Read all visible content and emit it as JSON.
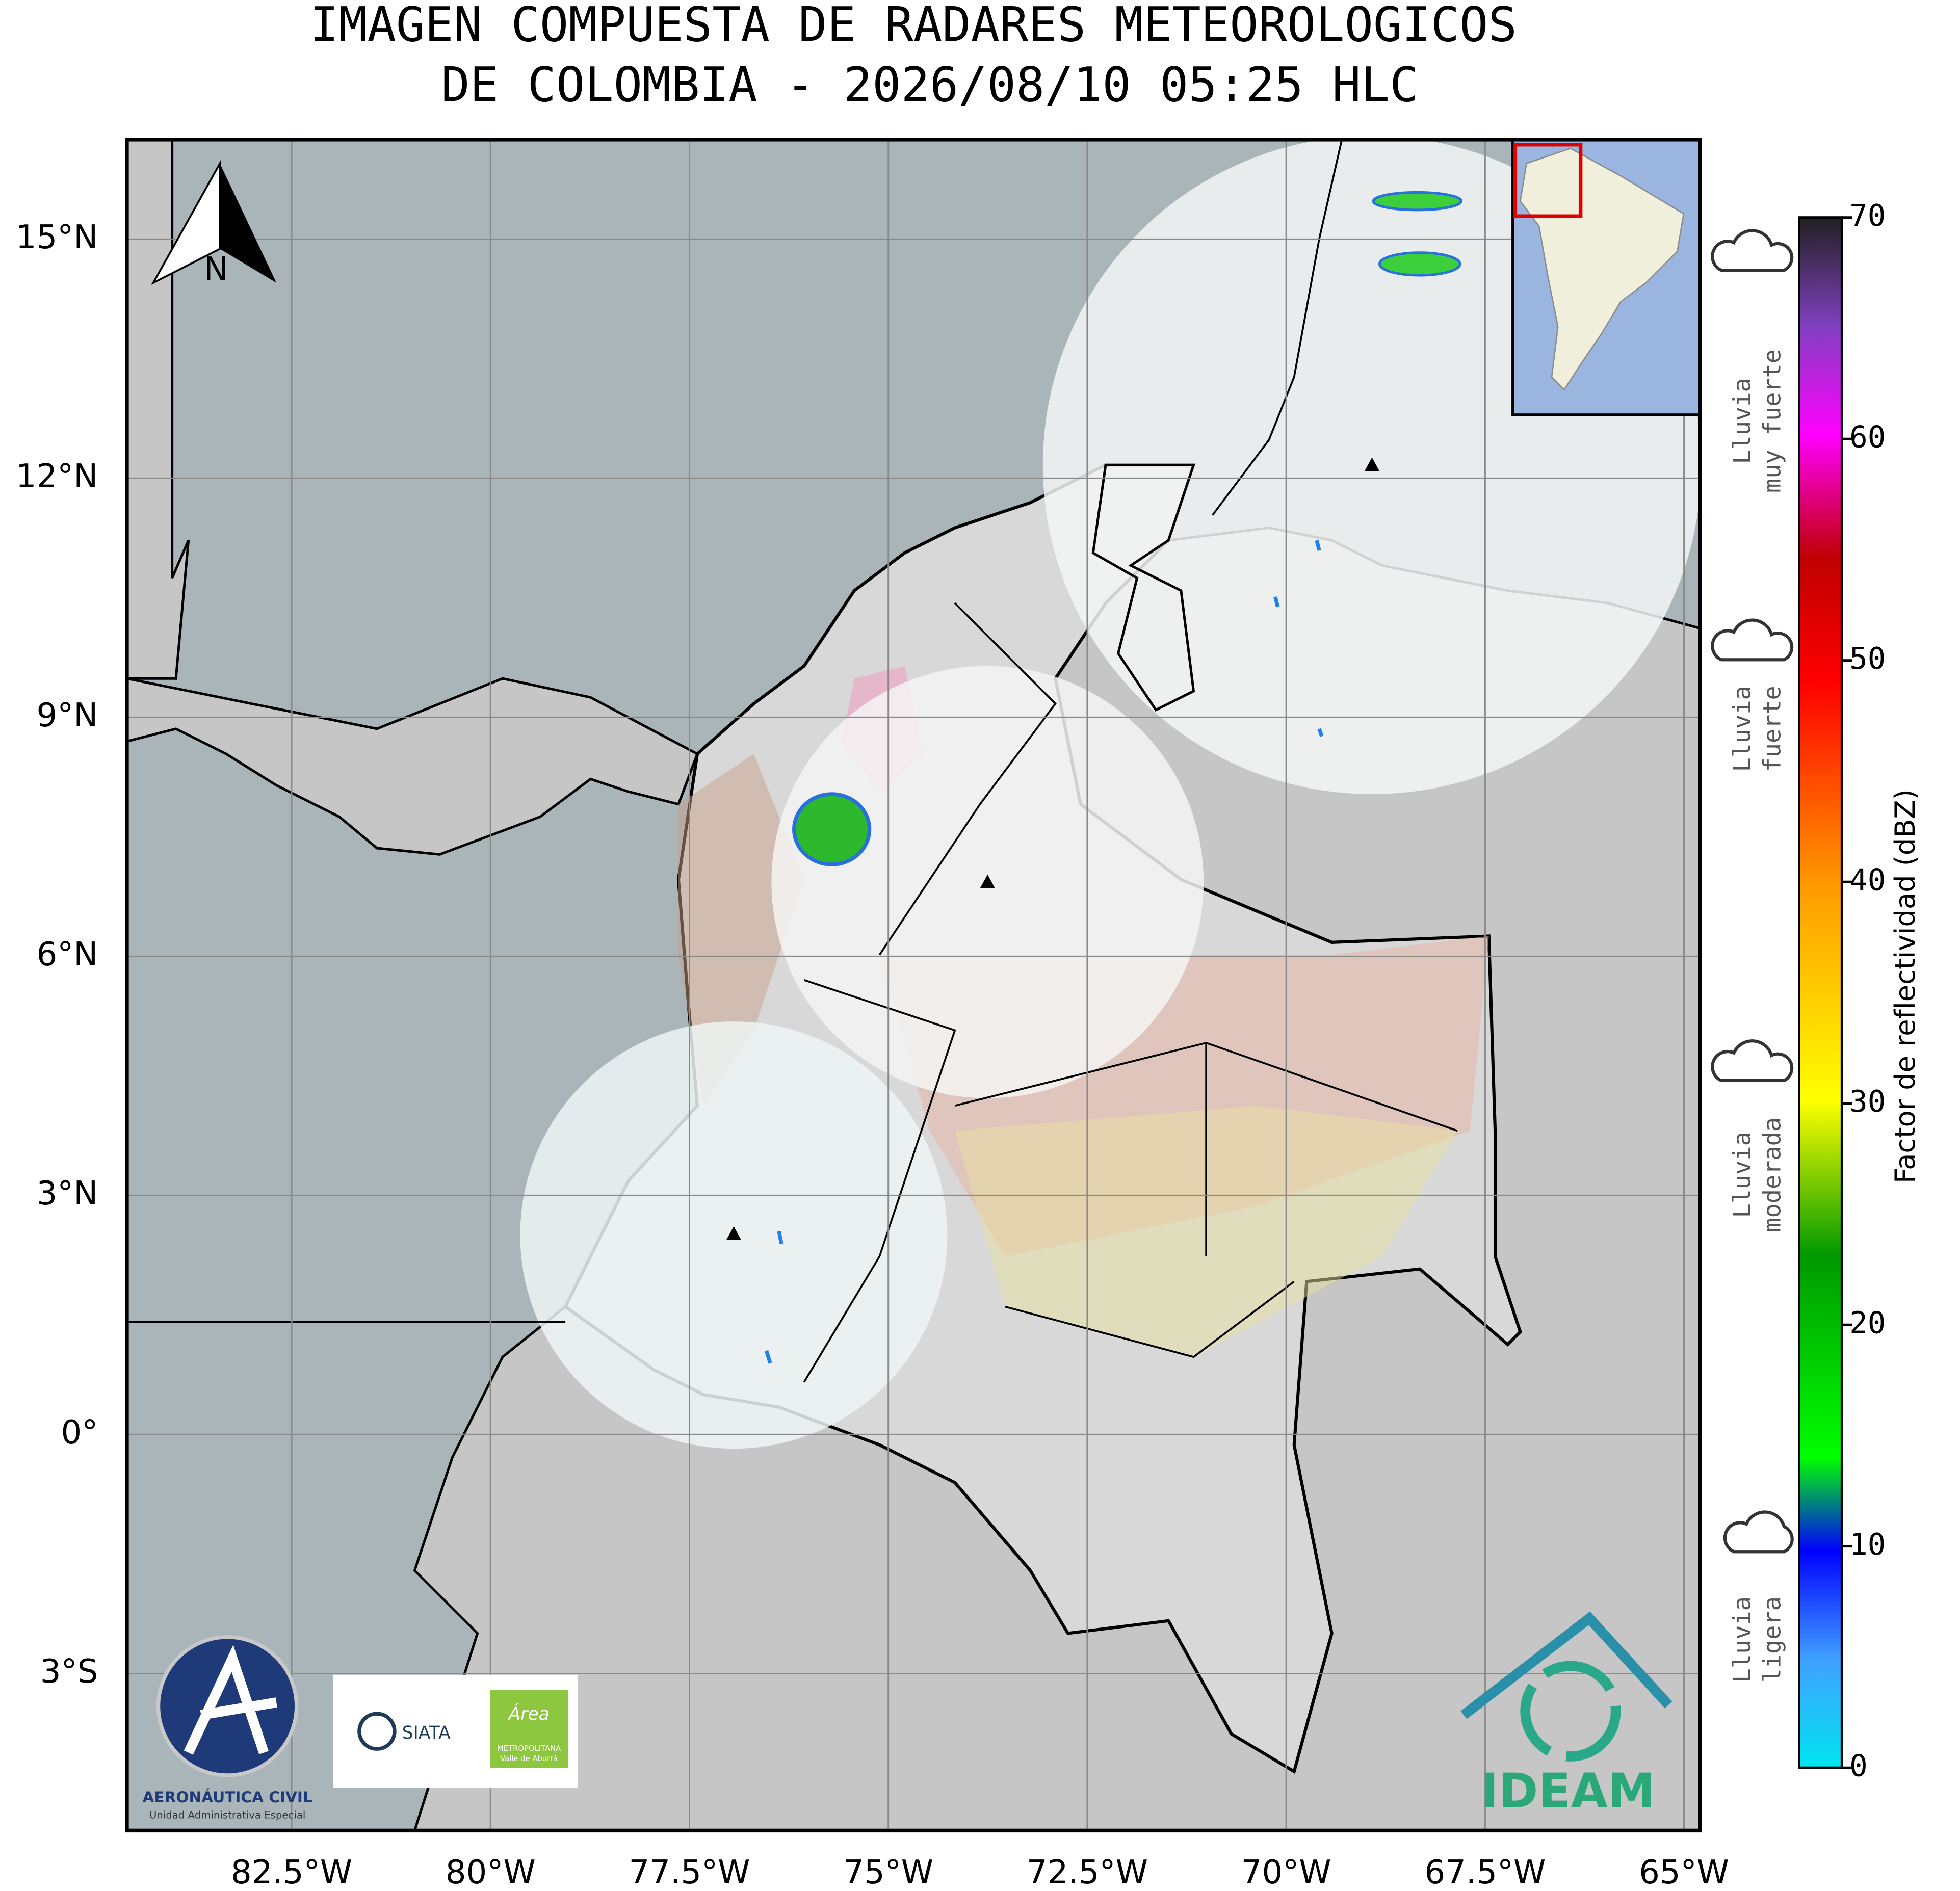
{
  "title": [
    "IMAGEN COMPUESTA DE RADARES METEOROLOGICOS",
    "DE COLOMBIA - 2026/08/10 05:25 HLC"
  ],
  "map": {
    "xlim": [
      -84.57,
      -64.8
    ],
    "ylim": [
      -4.97,
      16.25
    ],
    "xticks": [
      {
        "value": -82.5,
        "label": "82.5°W"
      },
      {
        "value": -80,
        "label": "80°W"
      },
      {
        "value": -77.5,
        "label": "77.5°W"
      },
      {
        "value": -75,
        "label": "75°W"
      },
      {
        "value": -72.5,
        "label": "72.5°W"
      },
      {
        "value": -70,
        "label": "70°W"
      },
      {
        "value": -67.5,
        "label": "67.5°W"
      },
      {
        "value": -65,
        "label": "65°W"
      }
    ],
    "yticks": [
      {
        "value": 15,
        "label": "15°N"
      },
      {
        "value": 12,
        "label": "12°N"
      },
      {
        "value": 9,
        "label": "9°N"
      },
      {
        "value": 6,
        "label": "6°N"
      },
      {
        "value": 3,
        "label": "3°N"
      },
      {
        "value": 0,
        "label": "0°"
      },
      {
        "value": -3,
        "label": "3°S"
      }
    ],
    "north_label": "N"
  },
  "colorbar": {
    "label": "Factor de reflectividad (dBZ)",
    "lim": [
      0,
      70
    ],
    "ticks": [
      0,
      10,
      20,
      30,
      40,
      50,
      60,
      70
    ]
  },
  "legend": [
    [
      "Lluvia",
      "muy fuerte"
    ],
    [
      "Lluvia",
      "fuerte"
    ],
    [
      "Lluvia",
      "moderada"
    ],
    [
      "Lluvia",
      "ligera"
    ]
  ],
  "logos": {
    "aerocivil": [
      "AERONÁUTICA CIVIL",
      "Unidad Administrativa Especial"
    ],
    "siata": "SIATA",
    "area": [
      "Área",
      "METROPOLITANA",
      "Valle de Aburrá"
    ],
    "ideam": "IDEAM"
  }
}
